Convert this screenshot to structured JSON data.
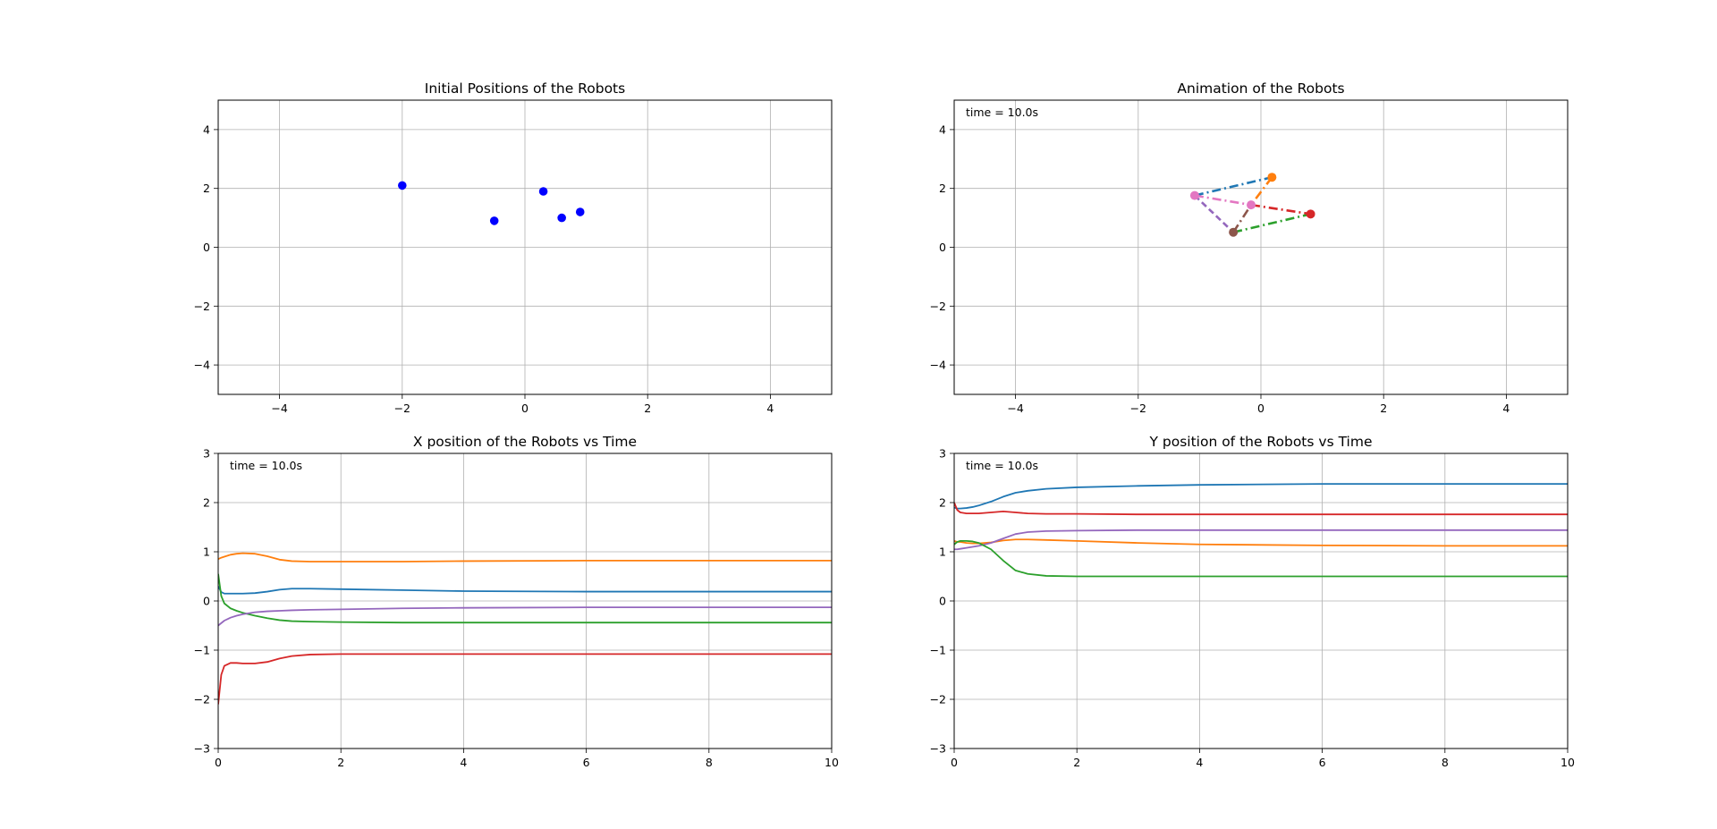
{
  "chart_data": [
    {
      "type": "scatter",
      "title": "Initial Positions of the Robots",
      "xlabel": "",
      "ylabel": "",
      "xlim": [
        -5,
        5
      ],
      "ylim": [
        -5,
        5
      ],
      "xticks": [
        -4,
        -2,
        0,
        2,
        4
      ],
      "yticks": [
        -4,
        -2,
        0,
        2,
        4
      ],
      "grid": true,
      "marker_color": "#0000ff",
      "points": [
        {
          "x": -2.0,
          "y": 2.1
        },
        {
          "x": -0.5,
          "y": 0.9
        },
        {
          "x": 0.3,
          "y": 1.9
        },
        {
          "x": 0.6,
          "y": 1.0
        },
        {
          "x": 0.9,
          "y": 1.2
        }
      ]
    },
    {
      "type": "line",
      "title": "Animation of the Robots",
      "annotation": "time = 10.0s",
      "xlabel": "",
      "ylabel": "",
      "xlim": [
        -5,
        5
      ],
      "ylim": [
        -5,
        5
      ],
      "xticks": [
        -4,
        -2,
        0,
        2,
        4
      ],
      "yticks": [
        -4,
        -2,
        0,
        2,
        4
      ],
      "grid": true,
      "robots": [
        {
          "x": 0.18,
          "y": 2.38,
          "color": "#ff7f0e"
        },
        {
          "x": 0.81,
          "y": 1.13,
          "color": "#d62728"
        },
        {
          "x": -0.45,
          "y": 0.51,
          "color": "#8c564b"
        },
        {
          "x": -1.08,
          "y": 1.76,
          "color": "#e377c2"
        },
        {
          "x": -0.16,
          "y": 1.44,
          "color": "#e377c2"
        }
      ],
      "links": [
        {
          "from": 3,
          "to": 0,
          "color": "#1f77b4",
          "style": "dashdot"
        },
        {
          "from": 0,
          "to": 4,
          "color": "#ff7f0e",
          "style": "dashdot"
        },
        {
          "from": 2,
          "to": 1,
          "color": "#2ca02c",
          "style": "dashdot"
        },
        {
          "from": 4,
          "to": 1,
          "color": "#d62728",
          "style": "dashdot"
        },
        {
          "from": 3,
          "to": 2,
          "color": "#9467bd",
          "style": "dashed"
        },
        {
          "from": 3,
          "to": 4,
          "color": "#e377c2",
          "style": "dashdot"
        },
        {
          "from": 2,
          "to": 4,
          "color": "#8c564b",
          "style": "dashdot"
        }
      ]
    },
    {
      "type": "line",
      "title": "X position of the Robots vs Time",
      "annotation": "time = 10.0s",
      "xlabel": "",
      "ylabel": "",
      "xlim": [
        0,
        10
      ],
      "ylim": [
        -3,
        3
      ],
      "xticks": [
        0,
        2,
        4,
        6,
        8,
        10
      ],
      "yticks": [
        -3,
        -2,
        -1,
        0,
        1,
        2,
        3
      ],
      "grid": true,
      "x": [
        0,
        0.05,
        0.1,
        0.2,
        0.3,
        0.4,
        0.6,
        0.8,
        1.0,
        1.2,
        1.5,
        2.0,
        3.0,
        4.0,
        6.0,
        8.0,
        10.0
      ],
      "series": [
        {
          "color": "#1f77b4",
          "values": [
            0.3,
            0.18,
            0.15,
            0.15,
            0.15,
            0.15,
            0.16,
            0.19,
            0.23,
            0.25,
            0.25,
            0.24,
            0.22,
            0.2,
            0.19,
            0.19,
            0.19
          ]
        },
        {
          "color": "#ff7f0e",
          "values": [
            0.85,
            0.88,
            0.9,
            0.94,
            0.96,
            0.97,
            0.96,
            0.91,
            0.84,
            0.81,
            0.8,
            0.8,
            0.8,
            0.81,
            0.82,
            0.82,
            0.82
          ]
        },
        {
          "color": "#2ca02c",
          "values": [
            0.55,
            0.1,
            -0.05,
            -0.15,
            -0.2,
            -0.24,
            -0.3,
            -0.35,
            -0.39,
            -0.41,
            -0.42,
            -0.43,
            -0.44,
            -0.44,
            -0.44,
            -0.44,
            -0.44
          ]
        },
        {
          "color": "#d62728",
          "values": [
            -2.1,
            -1.5,
            -1.32,
            -1.26,
            -1.26,
            -1.27,
            -1.27,
            -1.24,
            -1.17,
            -1.12,
            -1.09,
            -1.08,
            -1.08,
            -1.08,
            -1.08,
            -1.08,
            -1.08
          ]
        },
        {
          "color": "#9467bd",
          "values": [
            -0.5,
            -0.45,
            -0.4,
            -0.34,
            -0.3,
            -0.27,
            -0.23,
            -0.21,
            -0.2,
            -0.19,
            -0.18,
            -0.17,
            -0.15,
            -0.14,
            -0.13,
            -0.13,
            -0.13
          ]
        }
      ]
    },
    {
      "type": "line",
      "title": "Y position of the Robots vs Time",
      "annotation": "time = 10.0s",
      "xlabel": "",
      "ylabel": "",
      "xlim": [
        0,
        10
      ],
      "ylim": [
        -3,
        3
      ],
      "xticks": [
        0,
        2,
        4,
        6,
        8,
        10
      ],
      "yticks": [
        -3,
        -2,
        -1,
        0,
        1,
        2,
        3
      ],
      "grid": true,
      "x": [
        0,
        0.05,
        0.1,
        0.2,
        0.3,
        0.4,
        0.6,
        0.8,
        1.0,
        1.2,
        1.5,
        2.0,
        3.0,
        4.0,
        6.0,
        8.0,
        10.0
      ],
      "series": [
        {
          "color": "#1f77b4",
          "values": [
            1.9,
            1.88,
            1.88,
            1.89,
            1.91,
            1.94,
            2.02,
            2.12,
            2.2,
            2.24,
            2.28,
            2.31,
            2.34,
            2.36,
            2.38,
            2.38,
            2.38
          ]
        },
        {
          "color": "#d62728",
          "values": [
            2.0,
            1.85,
            1.8,
            1.78,
            1.78,
            1.78,
            1.8,
            1.82,
            1.8,
            1.78,
            1.77,
            1.77,
            1.76,
            1.76,
            1.76,
            1.76,
            1.76
          ]
        },
        {
          "color": "#ff7f0e",
          "values": [
            1.22,
            1.2,
            1.2,
            1.18,
            1.17,
            1.17,
            1.19,
            1.23,
            1.25,
            1.25,
            1.24,
            1.22,
            1.18,
            1.15,
            1.13,
            1.12,
            1.12
          ]
        },
        {
          "color": "#9467bd",
          "values": [
            1.05,
            1.05,
            1.06,
            1.08,
            1.1,
            1.12,
            1.18,
            1.27,
            1.36,
            1.4,
            1.42,
            1.43,
            1.44,
            1.44,
            1.44,
            1.44,
            1.44
          ]
        },
        {
          "color": "#2ca02c",
          "values": [
            1.15,
            1.2,
            1.22,
            1.22,
            1.21,
            1.18,
            1.05,
            0.82,
            0.62,
            0.55,
            0.51,
            0.5,
            0.5,
            0.5,
            0.5,
            0.5,
            0.5
          ]
        }
      ]
    }
  ]
}
